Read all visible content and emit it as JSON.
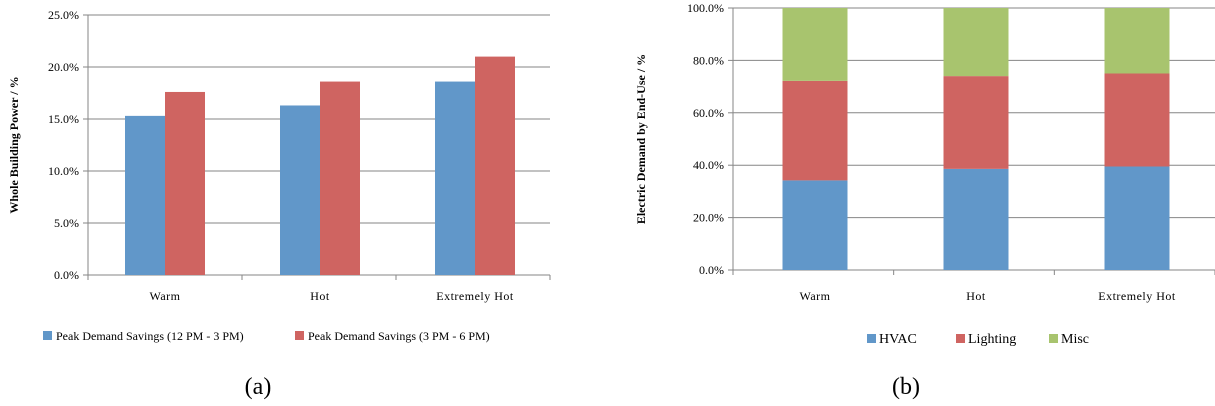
{
  "chart_data": [
    {
      "id": "a",
      "type": "bar",
      "panel_label": "(a)",
      "categories": [
        "Warm",
        "Hot",
        "Extremely Hot"
      ],
      "series": [
        {
          "name": "Peak Demand Savings (12 PM - 3 PM)",
          "values": [
            15.3,
            16.3,
            18.6
          ],
          "color": "#6197c9"
        },
        {
          "name": "Peak Demand Savings (3 PM - 6 PM)",
          "values": [
            17.6,
            18.6,
            21.0
          ],
          "color": "#cf6461"
        }
      ],
      "ylabel": "Whole Building Power / %",
      "ylim": [
        0,
        25
      ],
      "yticks": [
        "0.0%",
        "5.0%",
        "10.0%",
        "15.0%",
        "20.0%",
        "25.0%"
      ],
      "grid": true,
      "legend_position": "bottom"
    },
    {
      "id": "b",
      "type": "bar",
      "stacked": true,
      "panel_label": "(b)",
      "categories": [
        "Warm",
        "Hot",
        "Extremely Hot"
      ],
      "series": [
        {
          "name": "HVAC",
          "values": [
            34.2,
            38.6,
            39.5
          ],
          "color": "#6197c9"
        },
        {
          "name": "Lighting",
          "values": [
            38.0,
            35.4,
            35.5
          ],
          "color": "#cf6461"
        },
        {
          "name": "Misc",
          "values": [
            27.8,
            26.0,
            25.0
          ],
          "color": "#a8c46e"
        }
      ],
      "ylabel": "Electric Demand by End-Use / %",
      "ylim": [
        0,
        100
      ],
      "yticks": [
        "0.0%",
        "20.0%",
        "40.0%",
        "60.0%",
        "80.0%",
        "100.0%"
      ],
      "grid": true,
      "legend_position": "bottom"
    }
  ],
  "colors": {
    "axis": "#868686",
    "gridline": "#868686"
  }
}
